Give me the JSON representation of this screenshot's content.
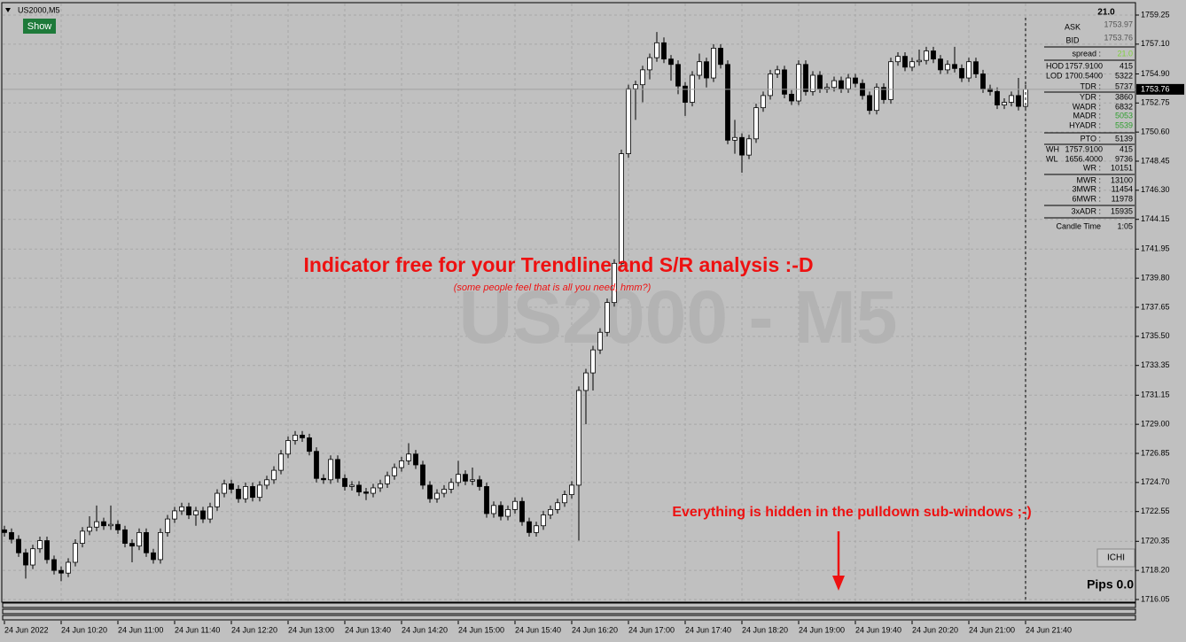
{
  "chart_data": {
    "type": "candlestick",
    "title": "US2000,M5",
    "watermark": "US2000 - M5",
    "annotations": [
      "Indicator free for your Trendline and S/R analysis :-D",
      "(some people feel that is all you need, hmm?)",
      "Everything is hidden in the pulldown sub-windows ;-)"
    ],
    "up_color": "#ffffff",
    "down_color": "#000000",
    "grid": true,
    "ylim": [
      1716.05,
      1759.25
    ],
    "yticks": [
      1759.25,
      {
        "value": 1757.1,
        "label": "1757.10"
      },
      {
        "value": 1754.9,
        "label": "1754.90"
      },
      1752.75,
      {
        "value": 1750.6,
        "label": "1750.60"
      },
      1748.45,
      {
        "value": 1746.3,
        "label": "1746.30"
      },
      1744.15,
      1741.95,
      {
        "value": 1739.8,
        "label": "1739.80"
      },
      1737.65,
      {
        "value": 1735.5,
        "label": "1735.50"
      },
      1733.35,
      1731.15,
      {
        "value": 1729.0,
        "label": "1729.00"
      },
      1726.85,
      {
        "value": 1724.7,
        "label": "1724.70"
      },
      1722.55,
      1720.35,
      {
        "value": 1718.2,
        "label": "1718.20"
      },
      1716.05
    ],
    "xlabels": [
      "24 Jun 2022",
      "24 Jun 10:20",
      "24 Jun 11:00",
      "24 Jun 11:40",
      "24 Jun 12:20",
      "24 Jun 13:00",
      "24 Jun 13:40",
      "24 Jun 14:20",
      "24 Jun 15:00",
      "24 Jun 15:40",
      "24 Jun 16:20",
      "24 Jun 17:00",
      "24 Jun 17:40",
      "24 Jun 18:20",
      "24 Jun 19:00",
      "24 Jun 19:40",
      "24 Jun 20:20",
      "24 Jun 21:00",
      "24 Jun 21:40"
    ],
    "last_price": 1753.76,
    "ohlc": [
      [
        1721.2,
        1721.5,
        1720.7,
        1721.0
      ],
      [
        1721.0,
        1721.3,
        1720.2,
        1720.5
      ],
      [
        1720.5,
        1720.8,
        1719.2,
        1719.5
      ],
      [
        1719.5,
        1719.8,
        1717.6,
        1718.6
      ],
      [
        1718.6,
        1720.1,
        1718.3,
        1719.8
      ],
      [
        1719.8,
        1720.7,
        1719.5,
        1720.4
      ],
      [
        1720.4,
        1720.7,
        1718.7,
        1719.0
      ],
      [
        1719.0,
        1719.3,
        1717.9,
        1718.2
      ],
      [
        1718.2,
        1718.5,
        1717.4,
        1718.0
      ],
      [
        1718.0,
        1719.1,
        1717.7,
        1718.8
      ],
      [
        1718.8,
        1720.5,
        1718.5,
        1720.2
      ],
      [
        1720.2,
        1721.4,
        1719.9,
        1721.1
      ],
      [
        1721.1,
        1722.2,
        1720.8,
        1721.4
      ],
      [
        1721.4,
        1723.0,
        1721.1,
        1721.8
      ],
      [
        1721.8,
        1722.1,
        1721.2,
        1721.5
      ],
      [
        1721.5,
        1723.0,
        1721.2,
        1721.6
      ],
      [
        1721.6,
        1721.9,
        1720.9,
        1721.2
      ],
      [
        1721.2,
        1721.5,
        1719.9,
        1720.2
      ],
      [
        1720.2,
        1720.5,
        1718.8,
        1720.0
      ],
      [
        1720.0,
        1721.3,
        1719.7,
        1721.0
      ],
      [
        1721.0,
        1721.3,
        1719.2,
        1719.5
      ],
      [
        1719.5,
        1719.8,
        1718.7,
        1719.0
      ],
      [
        1719.0,
        1721.3,
        1718.7,
        1721.0
      ],
      [
        1721.0,
        1722.3,
        1720.7,
        1722.0
      ],
      [
        1722.0,
        1722.9,
        1721.7,
        1722.6
      ],
      [
        1722.6,
        1723.2,
        1722.3,
        1722.9
      ],
      [
        1722.9,
        1723.2,
        1722.0,
        1722.3
      ],
      [
        1722.3,
        1722.9,
        1721.5,
        1722.6
      ],
      [
        1722.6,
        1722.9,
        1721.7,
        1722.0
      ],
      [
        1722.0,
        1723.2,
        1721.7,
        1722.9
      ],
      [
        1722.9,
        1724.2,
        1722.6,
        1723.9
      ],
      [
        1723.9,
        1724.9,
        1723.6,
        1724.6
      ],
      [
        1724.6,
        1724.9,
        1723.9,
        1724.2
      ],
      [
        1724.2,
        1724.5,
        1723.2,
        1723.5
      ],
      [
        1723.5,
        1724.7,
        1723.2,
        1724.4
      ],
      [
        1724.4,
        1724.7,
        1723.3,
        1723.6
      ],
      [
        1723.6,
        1724.8,
        1723.3,
        1724.5
      ],
      [
        1724.5,
        1725.2,
        1724.2,
        1724.9
      ],
      [
        1724.9,
        1725.9,
        1724.6,
        1725.6
      ],
      [
        1725.6,
        1727.1,
        1725.3,
        1726.8
      ],
      [
        1726.8,
        1728.1,
        1726.5,
        1727.8
      ],
      [
        1727.8,
        1728.5,
        1727.5,
        1728.2
      ],
      [
        1728.2,
        1728.5,
        1727.7,
        1728.0
      ],
      [
        1728.0,
        1728.3,
        1726.7,
        1727.0
      ],
      [
        1727.0,
        1727.3,
        1724.7,
        1725.0
      ],
      [
        1725.0,
        1725.3,
        1724.6,
        1724.9
      ],
      [
        1724.9,
        1726.7,
        1724.6,
        1726.4
      ],
      [
        1726.4,
        1726.7,
        1724.7,
        1725.0
      ],
      [
        1725.0,
        1725.3,
        1724.1,
        1724.4
      ],
      [
        1724.4,
        1724.8,
        1724.1,
        1724.5
      ],
      [
        1724.5,
        1724.8,
        1723.7,
        1724.0
      ],
      [
        1724.0,
        1724.3,
        1723.4,
        1723.9
      ],
      [
        1723.9,
        1724.6,
        1723.6,
        1724.3
      ],
      [
        1724.3,
        1724.9,
        1724.0,
        1724.6
      ],
      [
        1724.6,
        1725.5,
        1724.3,
        1725.2
      ],
      [
        1725.2,
        1726.1,
        1724.9,
        1725.8
      ],
      [
        1725.8,
        1726.6,
        1725.5,
        1726.3
      ],
      [
        1726.3,
        1727.6,
        1726.0,
        1726.8
      ],
      [
        1726.8,
        1727.1,
        1725.7,
        1726.0
      ],
      [
        1726.0,
        1726.3,
        1724.2,
        1724.5
      ],
      [
        1724.5,
        1724.8,
        1723.2,
        1723.5
      ],
      [
        1723.5,
        1724.2,
        1723.2,
        1723.9
      ],
      [
        1723.9,
        1724.5,
        1723.6,
        1724.2
      ],
      [
        1724.2,
        1725.0,
        1723.9,
        1724.7
      ],
      [
        1724.7,
        1726.3,
        1724.4,
        1725.3
      ],
      [
        1725.3,
        1725.6,
        1724.5,
        1724.8
      ],
      [
        1724.8,
        1725.8,
        1724.5,
        1724.9
      ],
      [
        1724.9,
        1725.2,
        1724.1,
        1724.4
      ],
      [
        1724.4,
        1724.7,
        1722.1,
        1722.4
      ],
      [
        1722.4,
        1723.3,
        1722.1,
        1723.0
      ],
      [
        1723.0,
        1723.3,
        1721.9,
        1722.2
      ],
      [
        1722.2,
        1723.0,
        1721.9,
        1722.7
      ],
      [
        1722.7,
        1723.6,
        1722.4,
        1723.3
      ],
      [
        1723.3,
        1723.6,
        1721.5,
        1721.8
      ],
      [
        1721.8,
        1722.1,
        1720.7,
        1721.0
      ],
      [
        1721.0,
        1721.8,
        1720.7,
        1721.5
      ],
      [
        1721.5,
        1722.6,
        1721.2,
        1722.3
      ],
      [
        1722.3,
        1723.0,
        1722.0,
        1722.7
      ],
      [
        1722.7,
        1723.5,
        1722.4,
        1723.2
      ],
      [
        1723.2,
        1724.1,
        1722.9,
        1723.8
      ],
      [
        1723.8,
        1724.8,
        1723.5,
        1724.5
      ],
      [
        1724.5,
        1731.8,
        1720.4,
        1731.5
      ],
      [
        1731.5,
        1733.1,
        1729.0,
        1732.8
      ],
      [
        1732.8,
        1734.8,
        1731.5,
        1734.5
      ],
      [
        1734.5,
        1736.1,
        1734.2,
        1735.8
      ],
      [
        1735.8,
        1738.3,
        1735.5,
        1738.0
      ],
      [
        1738.0,
        1741.2,
        1737.7,
        1740.9
      ],
      [
        1740.9,
        1749.3,
        1740.6,
        1749.0
      ],
      [
        1749.0,
        1754.1,
        1748.7,
        1753.8
      ],
      [
        1753.8,
        1754.4,
        1751.5,
        1754.1
      ],
      [
        1754.1,
        1755.5,
        1752.8,
        1755.2
      ],
      [
        1755.2,
        1756.4,
        1754.5,
        1756.1
      ],
      [
        1756.1,
        1758.0,
        1755.8,
        1757.2
      ],
      [
        1757.2,
        1757.6,
        1755.7,
        1756.0
      ],
      [
        1756.0,
        1756.3,
        1754.4,
        1755.6
      ],
      [
        1755.6,
        1755.9,
        1753.4,
        1754.0
      ],
      [
        1754.0,
        1754.3,
        1751.8,
        1752.8
      ],
      [
        1752.8,
        1755.1,
        1752.5,
        1754.8
      ],
      [
        1754.8,
        1756.4,
        1754.5,
        1755.8
      ],
      [
        1755.8,
        1756.1,
        1753.9,
        1754.6
      ],
      [
        1754.6,
        1757.1,
        1754.3,
        1756.8
      ],
      [
        1756.8,
        1757.1,
        1755.3,
        1755.6
      ],
      [
        1755.6,
        1755.9,
        1749.7,
        1750.0
      ],
      [
        1750.0,
        1751.5,
        1749.0,
        1750.2
      ],
      [
        1750.2,
        1750.5,
        1747.6,
        1748.9
      ],
      [
        1748.9,
        1750.4,
        1748.6,
        1750.1
      ],
      [
        1750.1,
        1752.7,
        1749.8,
        1752.4
      ],
      [
        1752.4,
        1753.6,
        1752.1,
        1753.3
      ],
      [
        1753.3,
        1755.2,
        1753.0,
        1754.9
      ],
      [
        1754.9,
        1755.5,
        1754.6,
        1755.2
      ],
      [
        1755.2,
        1755.5,
        1753.1,
        1753.4
      ],
      [
        1753.4,
        1753.7,
        1752.6,
        1752.9
      ],
      [
        1752.9,
        1755.9,
        1752.6,
        1755.6
      ],
      [
        1755.6,
        1755.9,
        1753.3,
        1753.6
      ],
      [
        1753.6,
        1755.1,
        1753.3,
        1754.8
      ],
      [
        1754.8,
        1755.1,
        1753.5,
        1753.8
      ],
      [
        1753.8,
        1754.2,
        1753.5,
        1753.9
      ],
      [
        1753.9,
        1754.7,
        1753.6,
        1754.4
      ],
      [
        1754.4,
        1754.7,
        1753.5,
        1753.8
      ],
      [
        1753.8,
        1754.9,
        1753.5,
        1754.6
      ],
      [
        1754.6,
        1754.9,
        1753.9,
        1754.2
      ],
      [
        1754.2,
        1754.5,
        1753.0,
        1753.3
      ],
      [
        1753.3,
        1753.6,
        1751.9,
        1752.2
      ],
      [
        1752.2,
        1754.2,
        1751.9,
        1753.9
      ],
      [
        1753.9,
        1754.2,
        1752.7,
        1753.0
      ],
      [
        1753.0,
        1756.1,
        1752.7,
        1755.8
      ],
      [
        1755.8,
        1756.5,
        1755.5,
        1756.2
      ],
      [
        1756.2,
        1756.5,
        1755.1,
        1755.4
      ],
      [
        1755.4,
        1756.1,
        1755.1,
        1755.8
      ],
      [
        1755.8,
        1756.7,
        1755.5,
        1755.9
      ],
      [
        1755.9,
        1756.9,
        1755.6,
        1756.6
      ],
      [
        1756.6,
        1756.9,
        1755.7,
        1756.0
      ],
      [
        1756.0,
        1756.3,
        1754.9,
        1755.2
      ],
      [
        1755.2,
        1755.9,
        1754.9,
        1755.6
      ],
      [
        1755.6,
        1756.9,
        1755.0,
        1755.3
      ],
      [
        1755.3,
        1755.6,
        1754.3,
        1754.6
      ],
      [
        1754.6,
        1756.1,
        1754.3,
        1755.8
      ],
      [
        1755.8,
        1756.1,
        1754.6,
        1754.9
      ],
      [
        1754.9,
        1755.2,
        1753.5,
        1753.8
      ],
      [
        1753.8,
        1754.1,
        1753.3,
        1753.6
      ],
      [
        1753.6,
        1753.9,
        1752.3,
        1752.6
      ],
      [
        1752.6,
        1753.1,
        1752.3,
        1752.8
      ],
      [
        1752.8,
        1753.6,
        1752.5,
        1753.3
      ],
      [
        1753.3,
        1754.6,
        1752.2,
        1752.5
      ],
      [
        1752.5,
        1754.1,
        1752.2,
        1753.76
      ]
    ]
  },
  "controls": {
    "show_button": "Show",
    "ichi_button": "ICHI",
    "pips": "Pips 0.0"
  },
  "info_panel": {
    "header": "21.0",
    "rows": [
      {
        "label": "ASK",
        "value": "1753.97"
      },
      {
        "label": "BID",
        "value": "1753.76"
      },
      {
        "label": "spread :",
        "value": "21.0",
        "value_color": "#7fd13b"
      },
      {
        "label": "HOD",
        "mid": "1757.9100",
        "value": "415"
      },
      {
        "label": "LOD",
        "mid": "1700.5400",
        "value": "5322"
      },
      {
        "label": "TDR :",
        "value": "5737"
      },
      {
        "label": "YDR :",
        "value": "3860"
      },
      {
        "label": "WADR :",
        "value": "6832"
      },
      {
        "label": "MADR :",
        "value": "5053",
        "value_color": "#2e9e2e"
      },
      {
        "label": "HYADR :",
        "value": "5539",
        "value_color": "#2e9e2e"
      },
      {
        "label": "PTO :",
        "value": "5139"
      },
      {
        "label": "WH",
        "mid": "1757.9100",
        "value": "415"
      },
      {
        "label": "WL",
        "mid": "1656.4000",
        "value": "9736"
      },
      {
        "label": "WR :",
        "value": "10151"
      },
      {
        "label": "MWR :",
        "value": "13100"
      },
      {
        "label": "3MWR :",
        "value": "11454"
      },
      {
        "label": "6MWR :",
        "value": "11978"
      },
      {
        "label": "3xADR :",
        "value": "15935"
      },
      {
        "label": "Candle Time",
        "value": "1:05"
      }
    ]
  }
}
